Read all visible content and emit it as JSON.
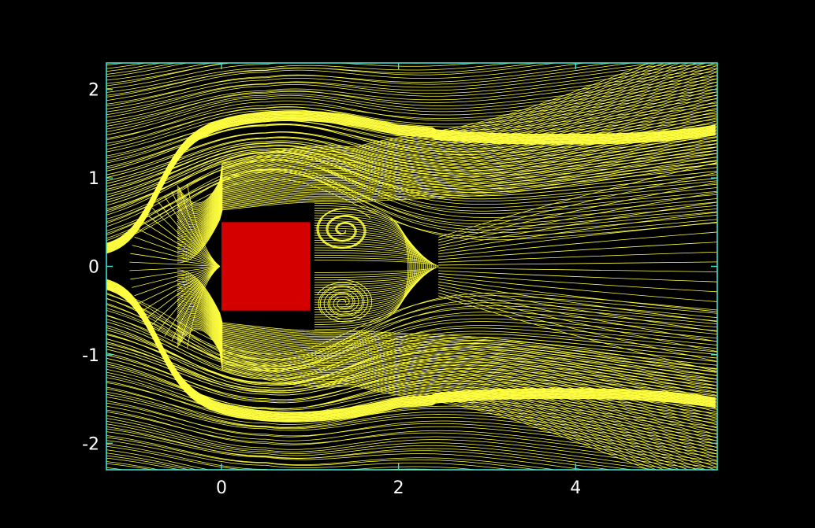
{
  "chart_data": {
    "type": "streamline",
    "title": "",
    "xlabel": "",
    "ylabel": "",
    "xlim": [
      -1.3,
      5.6
    ],
    "ylim": [
      -2.3,
      2.3
    ],
    "x_ticks": [
      0,
      2,
      4
    ],
    "y_ticks": [
      2,
      1,
      0,
      -1,
      -2
    ],
    "x_tick_labels": [
      "0",
      "2",
      "4"
    ],
    "y_tick_labels": [
      "2",
      "1",
      "0",
      "-1",
      "-2"
    ],
    "obstacle": {
      "shape": "square",
      "x0": 0,
      "x1": 1,
      "y0": -0.5,
      "y1": 0.5
    },
    "wake_vortices": [
      {
        "x": 1.38,
        "y": 0.41,
        "rotation": "clockwise"
      },
      {
        "x": 1.38,
        "y": -0.41,
        "rotation": "counter-clockwise"
      }
    ],
    "recirculation_end_x": 2.45,
    "colors": {
      "background": "#000000",
      "frame": "#40e0d0",
      "streamlines": "#ffff40",
      "obstacle": "#d40000",
      "tick_labels": "#ffffff"
    },
    "grid": false,
    "legend": "none"
  }
}
